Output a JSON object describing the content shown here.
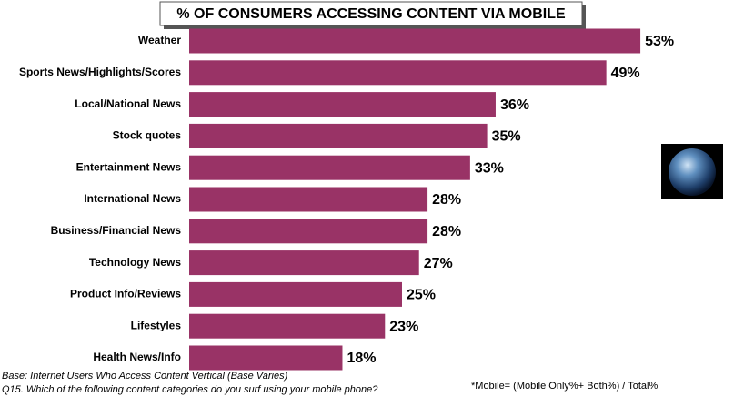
{
  "chart_data": {
    "type": "bar",
    "orientation": "horizontal",
    "title": "% OF CONSUMERS ACCESSING CONTENT VIA MOBILE",
    "categories": [
      "Weather",
      "Sports News/Highlights/Scores",
      "Local/National News",
      "Stock quotes",
      "Entertainment News",
      "International News",
      "Business/Financial News",
      "Technology News",
      "Product Info/Reviews",
      "Lifestyles",
      "Health News/Info"
    ],
    "values": [
      53,
      49,
      36,
      35,
      33,
      28,
      28,
      27,
      25,
      23,
      18
    ],
    "value_labels": [
      "53%",
      "49%",
      "36%",
      "35%",
      "33%",
      "28%",
      "28%",
      "27%",
      "25%",
      "23%",
      "18%"
    ],
    "color": "#993366",
    "notes": [
      "Base: Internet Users Who Access Content Vertical (Base Varies)",
      "Q15.   Which of the following content categories do you surf using your mobile phone?"
    ],
    "definition": "*Mobile= (Mobile Only%+ Both%) / Total%"
  }
}
